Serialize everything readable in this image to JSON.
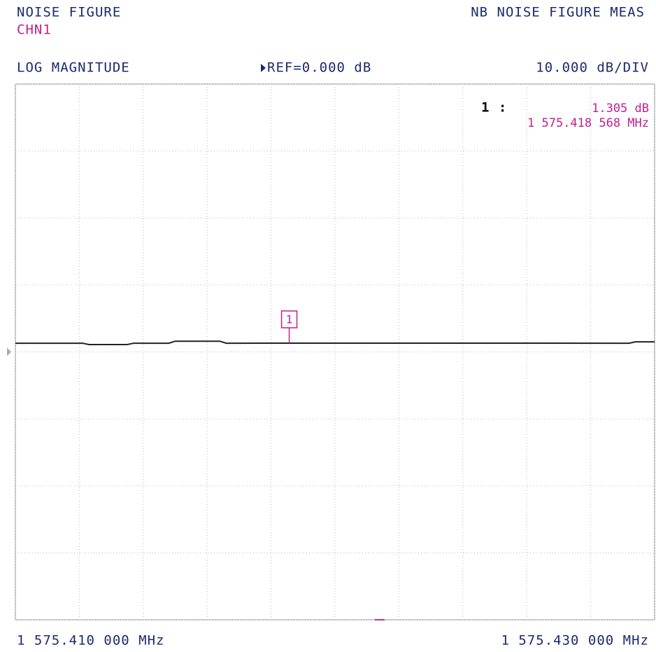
{
  "chart_data": {
    "type": "line",
    "title": "NOISE FIGURE",
    "channel": "CHN1",
    "measurement": "NB NOISE FIGURE MEAS",
    "format": "LOG MAGNITUDE",
    "reference": "REF=0.000 dB",
    "scale": "10.000 dB/DIV",
    "start_label": "1 575.410 000 MHz",
    "stop_label": "1 575.430 000 MHz",
    "x": [
      1575.41,
      1575.4121,
      1575.4123,
      1575.4135,
      1575.4137,
      1575.4148,
      1575.415,
      1575.4164,
      1575.4166,
      1575.418568,
      1575.4292,
      1575.4294,
      1575.43
    ],
    "values": [
      1.3,
      1.3,
      1.1,
      1.1,
      1.3,
      1.3,
      1.6,
      1.6,
      1.3,
      1.305,
      1.3,
      1.5,
      1.5
    ],
    "color": "#222222",
    "xlim": [
      1575.41,
      1575.43
    ],
    "xticks": [
      1575.41,
      1575.412,
      1575.414,
      1575.416,
      1575.418,
      1575.42,
      1575.422,
      1575.424,
      1575.426,
      1575.428,
      1575.43
    ],
    "ylim": [
      -40,
      40
    ],
    "yticks": [
      -40,
      -30,
      -20,
      -10,
      0,
      10,
      20,
      30,
      40
    ],
    "reference_value": 0,
    "grid": true,
    "marker": {
      "label": "1",
      "readout_label": "1 :",
      "x": 1575.418568,
      "x_label": "1 575.418 568 MHz",
      "value": 1.305,
      "value_label": "1.305 dB",
      "color": "#c0208f"
    }
  }
}
